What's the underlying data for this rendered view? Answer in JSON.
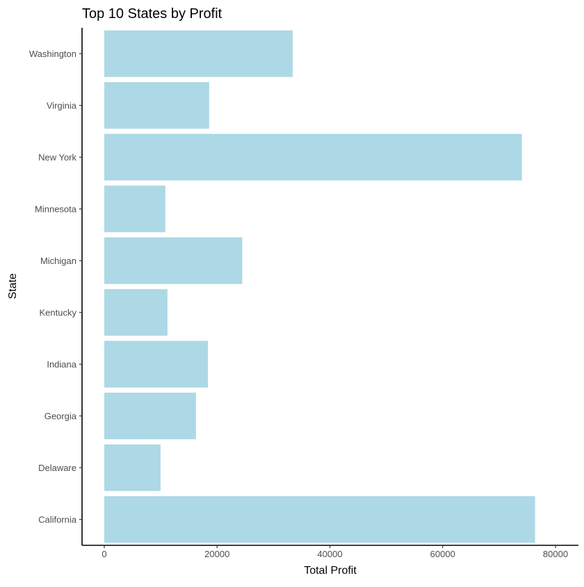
{
  "chart_data": {
    "type": "bar",
    "orientation": "horizontal",
    "title": "Top 10 States by Profit",
    "xlabel": "Total Profit",
    "ylabel": "State",
    "categories": [
      "California",
      "Delaware",
      "Georgia",
      "Indiana",
      "Kentucky",
      "Michigan",
      "Minnesota",
      "New York",
      "Virginia",
      "Washington"
    ],
    "values": [
      76381,
      9977,
      16250,
      18383,
      11200,
      24463,
      10823,
      74039,
      18598,
      33403
    ],
    "xlim": [
      0,
      80000
    ],
    "x_ticks": [
      0,
      20000,
      40000,
      60000,
      80000
    ],
    "x_tick_labels": [
      "0",
      "20000",
      "40000",
      "60000",
      "80000"
    ],
    "bar_color": "#ADD8E6",
    "grid": false,
    "legend": "none"
  }
}
